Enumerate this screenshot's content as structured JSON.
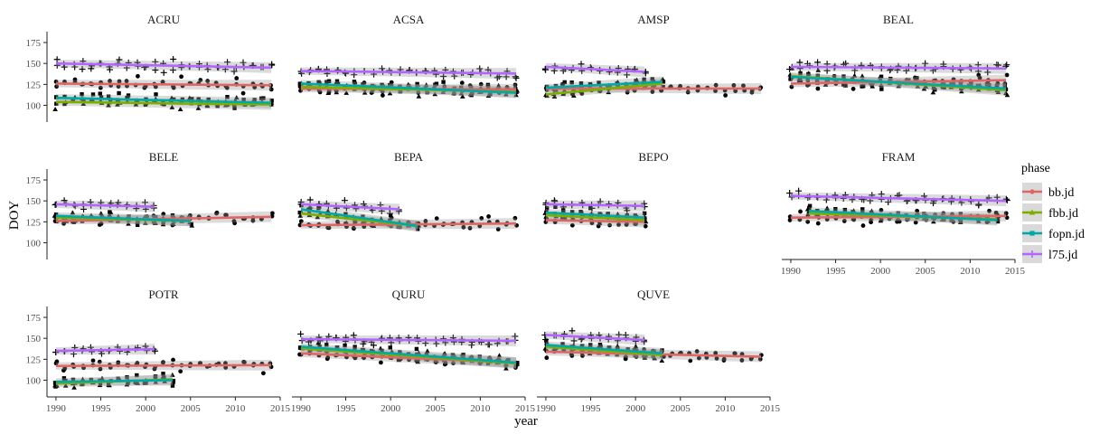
{
  "chart_data": {
    "type": "scatter",
    "xlabel": "year",
    "ylabel": "DOY",
    "xlim": [
      1989,
      2015
    ],
    "ylim": [
      80,
      188
    ],
    "x_ticks": [
      1990,
      1995,
      2000,
      2005,
      2010,
      2015
    ],
    "y_ticks": [
      100,
      125,
      150,
      175
    ],
    "legend": {
      "title": "phase",
      "placement": "right",
      "entries": [
        {
          "name": "bb.jd",
          "color": "#E06666",
          "shape": "circle"
        },
        {
          "name": "fbb.jd",
          "color": "#7CAE00",
          "shape": "triangle"
        },
        {
          "name": "fopn.jd",
          "color": "#00A9A5",
          "shape": "square"
        },
        {
          "name": "l75.jd",
          "color": "#B266FF",
          "shape": "plus"
        }
      ]
    },
    "panels": [
      {
        "species": "ACRU",
        "trends": {
          "bb.jd": [
            1990,
            126,
            2014,
            124
          ],
          "fbb.jd": [
            1990,
            104,
            2014,
            101
          ],
          "fopn.jd": [
            1990,
            109,
            2014,
            103
          ],
          "l75.jd": [
            1990,
            150,
            2014,
            145
          ]
        }
      },
      {
        "species": "ACSA",
        "trends": {
          "bb.jd": [
            1990,
            120,
            2014,
            119
          ],
          "fbb.jd": [
            1990,
            122,
            2014,
            116
          ],
          "fopn.jd": [
            1990,
            126,
            2014,
            115
          ],
          "l75.jd": [
            1990,
            141,
            2014,
            138
          ]
        }
      },
      {
        "species": "AMSP",
        "trends": {
          "bb.jd": [
            1990,
            120,
            2014,
            120
          ],
          "fbb.jd": [
            1990,
            113,
            2003,
            126
          ],
          "fopn.jd": [
            1990,
            121,
            2003,
            128
          ],
          "l75.jd": [
            1990,
            146,
            2001,
            140
          ]
        }
      },
      {
        "species": "BEAL",
        "trends": {
          "bb.jd": [
            1990,
            126,
            2014,
            130
          ],
          "fbb.jd": [
            1990,
            135,
            2014,
            118
          ],
          "fopn.jd": [
            1990,
            134,
            2014,
            120
          ],
          "l75.jd": [
            1990,
            146,
            2014,
            144
          ]
        }
      },
      {
        "species": "BELE",
        "trends": {
          "bb.jd": [
            1990,
            126,
            2014,
            131
          ],
          "fbb.jd": [
            1990,
            130,
            2005,
            126
          ],
          "fopn.jd": [
            1990,
            132,
            2005,
            126
          ],
          "l75.jd": [
            1990,
            146,
            2001,
            143
          ]
        }
      },
      {
        "species": "BEPA",
        "trends": {
          "bb.jd": [
            1990,
            121,
            2014,
            123
          ],
          "fbb.jd": [
            1990,
            135,
            2003,
            120
          ],
          "fopn.jd": [
            1990,
            140,
            2003,
            120
          ],
          "l75.jd": [
            1990,
            146,
            2001,
            140
          ]
        }
      },
      {
        "species": "BEPO",
        "trends": {
          "bb.jd": [
            1990,
            127,
            2001,
            125
          ],
          "fbb.jd": [
            1990,
            133,
            2001,
            127
          ],
          "fopn.jd": [
            1990,
            136,
            2001,
            130
          ],
          "l75.jd": [
            1990,
            146,
            2001,
            144
          ]
        }
      },
      {
        "species": "FRAM",
        "trends": {
          "bb.jd": [
            1990,
            130,
            2014,
            132
          ],
          "fbb.jd": [
            1992,
            135,
            2013,
            128
          ],
          "fopn.jd": [
            1992,
            138,
            2013,
            127
          ],
          "l75.jd": [
            1990,
            156,
            2014,
            150
          ]
        }
      },
      {
        "species": "POTR",
        "trends": {
          "bb.jd": [
            1990,
            117,
            2014,
            118
          ],
          "fbb.jd": [
            1990,
            96,
            2003,
            101
          ],
          "fopn.jd": [
            1990,
            98,
            2003,
            100
          ],
          "l75.jd": [
            1990,
            135,
            2001,
            137
          ]
        }
      },
      {
        "species": "QURU",
        "trends": {
          "bb.jd": [
            1990,
            132,
            2014,
            121
          ],
          "fbb.jd": [
            1990,
            138,
            2014,
            120
          ],
          "fopn.jd": [
            1990,
            140,
            2014,
            121
          ],
          "l75.jd": [
            1990,
            149,
            2014,
            147
          ]
        }
      },
      {
        "species": "QUVE",
        "trends": {
          "bb.jd": [
            1990,
            134,
            2014,
            128
          ],
          "fbb.jd": [
            1990,
            140,
            2003,
            130
          ],
          "fopn.jd": [
            1990,
            142,
            2003,
            132
          ],
          "l75.jd": [
            1990,
            154,
            2001,
            148
          ]
        }
      }
    ]
  }
}
